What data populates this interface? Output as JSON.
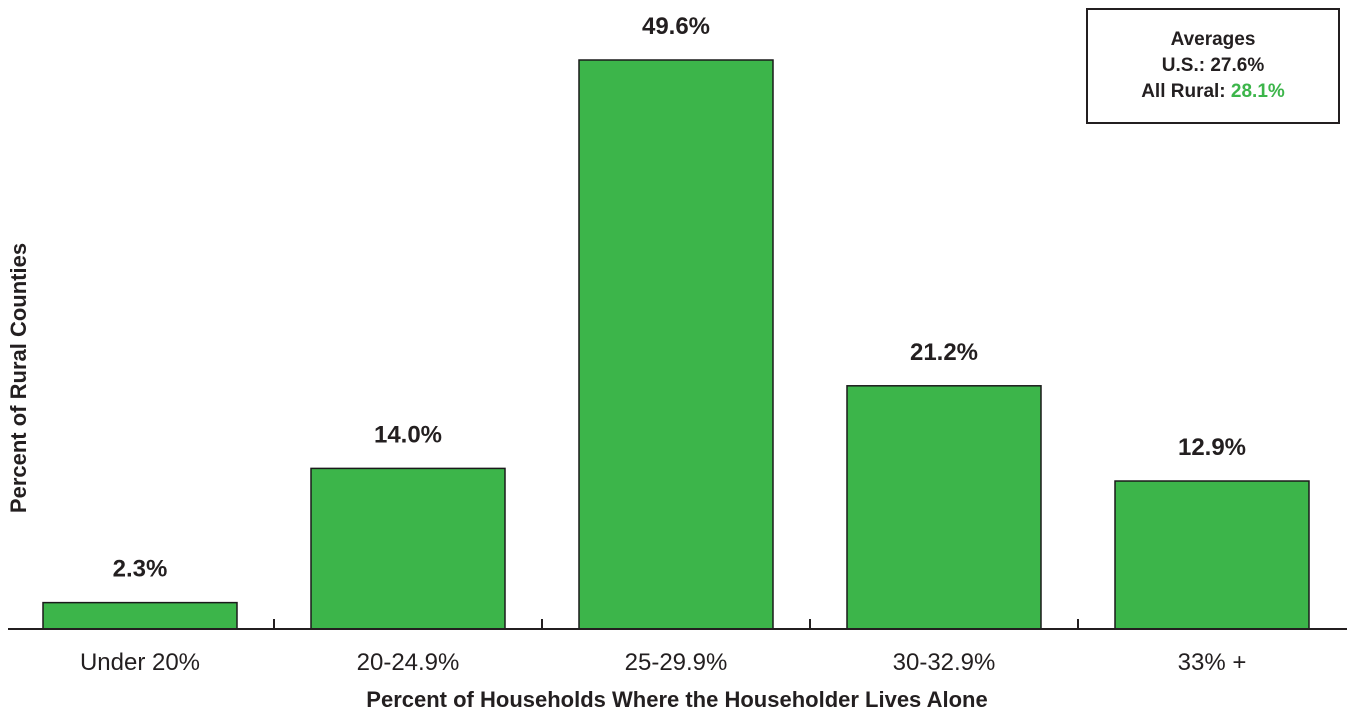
{
  "chart_data": {
    "type": "bar",
    "categories": [
      "Under 20%",
      "20-24.9%",
      "25-29.9%",
      "30-32.9%",
      "33% +"
    ],
    "values": [
      2.3,
      14.0,
      49.6,
      21.2,
      12.9
    ],
    "value_labels": [
      "2.3%",
      "14.0%",
      "49.6%",
      "21.2%",
      "12.9%"
    ],
    "xlabel": "Percent of Households Where the Householder Lives Alone",
    "ylabel": "Percent of Rural Counties",
    "ylim": [
      0,
      52
    ],
    "grid": false,
    "bar_color": "#3cb54a"
  },
  "averages_box": {
    "title": "Averages",
    "us_label": "U.S.: 27.6%",
    "rural_label": "All Rural:",
    "rural_value": "28.1%",
    "placement": "top-right"
  }
}
